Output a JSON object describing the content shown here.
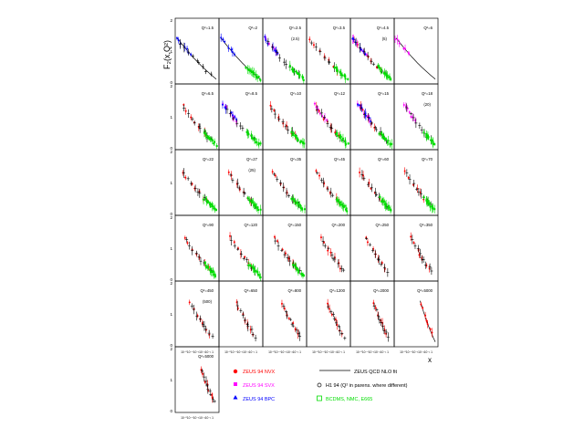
{
  "chart_data": {
    "type": "scatter",
    "ylabel": "F₂(x,Q²)",
    "xlabel": "x",
    "y_ticks": [
      "2",
      "1",
      "0"
    ],
    "x_tick_text": "10⁻⁵10⁻⁴10⁻³10⁻²10⁻¹ 1",
    "grid": "6 columns × 7 rows of small panels, one per Q² bin",
    "legend": {
      "zeus_mvx": "ZEUS 94 NVX",
      "zeus_svx": "ZEUS 94 SVX",
      "zeus_bpc": "ZEUS 94 BPC",
      "nlo_fit": "ZEUS QCD NLO fit",
      "h1": "H1 94 (Q² in parens. where different)",
      "fixed_target": "BCDMS, NMC, E665"
    },
    "series_colors": {
      "zeus_mvx": "#ff0000",
      "zeus_svx": "#ff00ff",
      "zeus_bpc": "#0000ff",
      "h1": "#000000",
      "fixed_target": "#00dd00",
      "nlo_fit": "#000000"
    },
    "panels": [
      {
        "q2": "Q²=1.5",
        "note": "",
        "series": [
          "bpc",
          "h1",
          "fit"
        ],
        "start": 0.0
      },
      {
        "q2": "Q²=2",
        "note": "",
        "series": [
          "bpc",
          "fixed",
          "fit"
        ],
        "start": 0.0
      },
      {
        "q2": "Q²=2.5",
        "note": "(2.5)",
        "series": [
          "svx",
          "bpc",
          "h1",
          "fixed"
        ],
        "start": 0.0
      },
      {
        "q2": "Q²=3.5",
        "note": "",
        "series": [
          "mvx",
          "h1",
          "fixed"
        ],
        "start": 0.0
      },
      {
        "q2": "Q²=4.5",
        "note": "(5)",
        "series": [
          "mvx",
          "svx",
          "bpc",
          "h1",
          "fixed"
        ],
        "start": 0.0
      },
      {
        "q2": "Q²=6",
        "note": "",
        "series": [
          "svx",
          "fit"
        ],
        "start": 0.0
      },
      {
        "q2": "Q²=6.5",
        "note": "",
        "series": [
          "mvx",
          "h1",
          "fixed"
        ],
        "start": 0.1
      },
      {
        "q2": "Q²=8.5",
        "note": "",
        "series": [
          "svx",
          "bpc",
          "h1",
          "fixed"
        ],
        "start": 0.05
      },
      {
        "q2": "Q²=10",
        "note": "",
        "series": [
          "mvx",
          "h1",
          "fixed"
        ],
        "start": 0.1
      },
      {
        "q2": "Q²=12",
        "note": "",
        "series": [
          "mvx",
          "svx",
          "h1",
          "fixed"
        ],
        "start": 0.15
      },
      {
        "q2": "Q²=15",
        "note": "",
        "series": [
          "mvx",
          "svx",
          "bpc",
          "h1",
          "fixed"
        ],
        "start": 0.15
      },
      {
        "q2": "Q²=18",
        "note": "(20)",
        "series": [
          "svx",
          "h1",
          "fixed"
        ],
        "start": 0.2
      },
      {
        "q2": "Q²=22",
        "note": "",
        "series": [
          "mvx",
          "h1",
          "fixed"
        ],
        "start": 0.1
      },
      {
        "q2": "Q²=27",
        "note": "(25)",
        "series": [
          "mvx",
          "h1",
          "fixed"
        ],
        "start": 0.15
      },
      {
        "q2": "Q²=35",
        "note": "",
        "series": [
          "mvx",
          "h1",
          "fixed"
        ],
        "start": 0.15
      },
      {
        "q2": "Q²=45",
        "note": "",
        "series": [
          "mvx",
          "h1",
          "fixed"
        ],
        "start": 0.15
      },
      {
        "q2": "Q²=60",
        "note": "",
        "series": [
          "mvx",
          "h1",
          "fixed"
        ],
        "start": 0.15
      },
      {
        "q2": "Q²=70",
        "note": "",
        "series": [
          "mvx",
          "h1",
          "fixed"
        ],
        "start": 0.2
      },
      {
        "q2": "Q²=90",
        "note": "",
        "series": [
          "mvx",
          "h1",
          "fixed"
        ],
        "start": 0.15
      },
      {
        "q2": "Q²=120",
        "note": "",
        "series": [
          "mvx",
          "h1",
          "fixed"
        ],
        "start": 0.2
      },
      {
        "q2": "Q²=150",
        "note": "",
        "series": [
          "mvx",
          "h1",
          "fixed"
        ],
        "start": 0.2
      },
      {
        "q2": "Q²=200",
        "note": "",
        "series": [
          "mvx",
          "h1"
        ],
        "start": 0.3
      },
      {
        "q2": "Q²=250",
        "note": "",
        "series": [
          "mvx",
          "h1"
        ],
        "start": 0.3
      },
      {
        "q2": "Q²=350",
        "note": "",
        "series": [
          "mvx",
          "h1"
        ],
        "start": 0.35
      },
      {
        "q2": "Q²=450",
        "note": "(500)",
        "series": [
          "mvx",
          "h1"
        ],
        "start": 0.3
      },
      {
        "q2": "Q²=650",
        "note": "",
        "series": [
          "mvx",
          "h1"
        ],
        "start": 0.35
      },
      {
        "q2": "Q²=800",
        "note": "",
        "series": [
          "mvx",
          "h1"
        ],
        "start": 0.4
      },
      {
        "q2": "Q²=1200",
        "note": "",
        "series": [
          "mvx",
          "h1"
        ],
        "start": 0.45
      },
      {
        "q2": "Q²=2000",
        "note": "",
        "series": [
          "mvx",
          "h1"
        ],
        "start": 0.5
      },
      {
        "q2": "Q²=5000",
        "note": "",
        "series": [
          "mvx",
          "fit"
        ],
        "start": 0.6
      },
      {
        "q2": "Q²=5000",
        "note": "",
        "series": [
          "mvx",
          "h1"
        ],
        "start": 0.6
      }
    ]
  }
}
